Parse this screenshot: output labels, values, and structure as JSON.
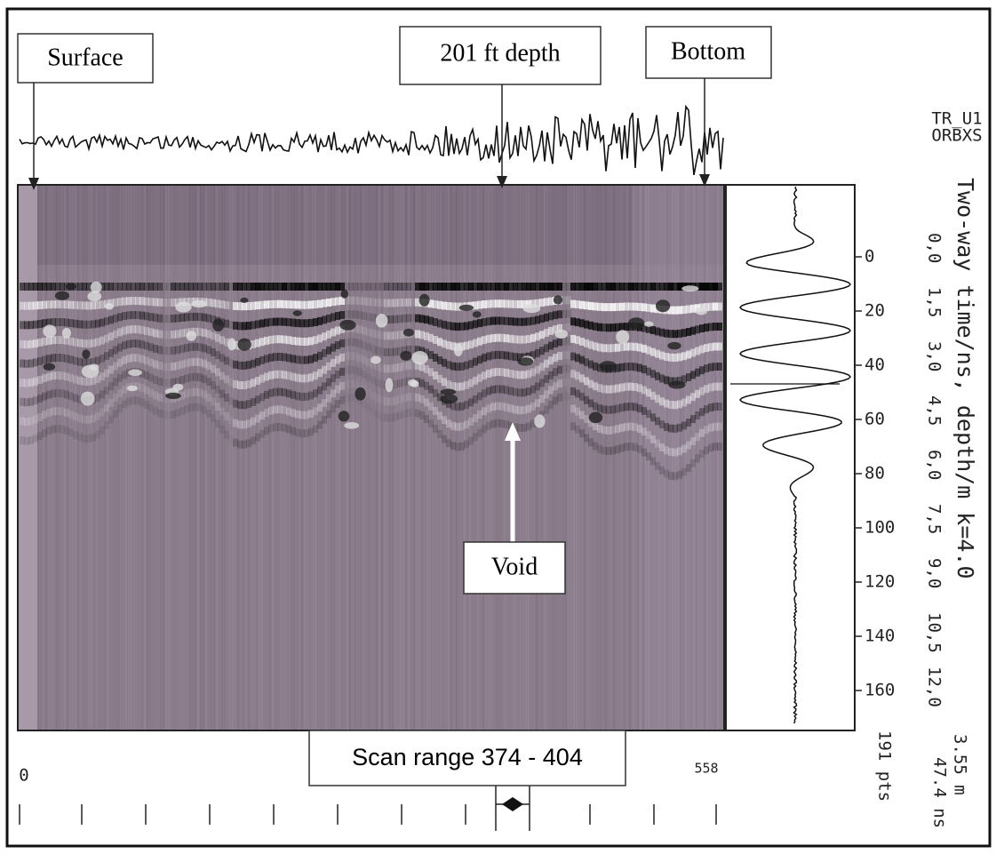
{
  "annotations": {
    "surface": "Surface",
    "depth": "201 ft depth",
    "bottom": "Bottom",
    "void": "Void",
    "scan_range": "Scan range 374 - 404"
  },
  "header": {
    "trace_name": "TR_U1",
    "file": "ORBXS"
  },
  "axis": {
    "title": "Two-way time/ns, depth/m k=4.0",
    "time_ticks": [
      0,
      20,
      40,
      60,
      80,
      100,
      120,
      140,
      160
    ],
    "depth_ticks": [
      "0,0",
      "1,5",
      "3,0",
      "4,5",
      "6,0",
      "7,5",
      "9,0",
      "10,5",
      "12,0"
    ]
  },
  "footer": {
    "range": "3.55 m",
    "time": "47.4 ns",
    "points": "191 pts",
    "scan_start": "0",
    "scan_end": "558"
  }
}
